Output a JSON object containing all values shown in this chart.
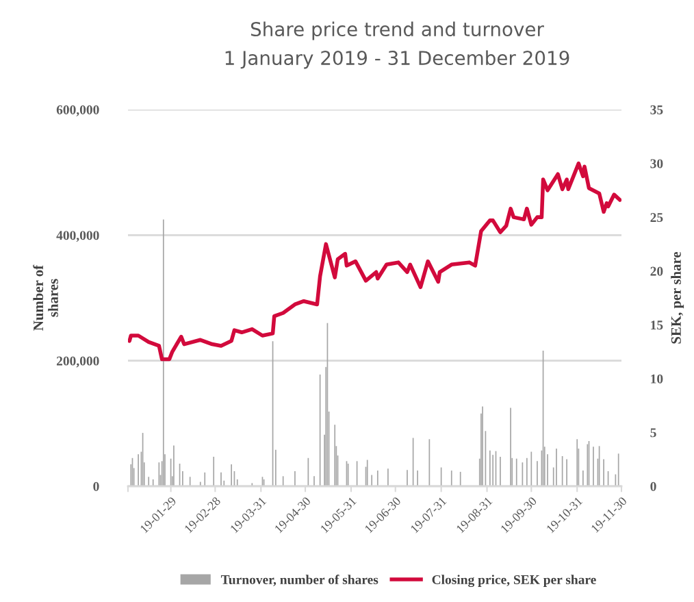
{
  "chart_data": {
    "type": "bar",
    "title": "Share price trend and turnover",
    "subtitle": "1 January 2019 - 31 December 2019",
    "ylabel": "Number of\nshares",
    "y2label": "SEK, per share",
    "xlim": [
      "2018-12-31",
      "2019-11-30"
    ],
    "xticks": [
      {
        "value": "2018-12-31",
        "label": null
      },
      {
        "value": "2019-01-29",
        "label": "19-01-29"
      },
      {
        "value": "2019-02-28",
        "label": "19-02-28"
      },
      {
        "value": "2019-03-31",
        "label": "19-03-31"
      },
      {
        "value": "2019-04-30",
        "label": "19-04-30"
      },
      {
        "value": "2019-05-31",
        "label": "19-05-31"
      },
      {
        "value": "2019-06-30",
        "label": "19-06-30"
      },
      {
        "value": "2019-07-31",
        "label": "19-07-31"
      },
      {
        "value": "2019-08-31",
        "label": "19-08-31"
      },
      {
        "value": "2019-09-30",
        "label": "19-09-30"
      },
      {
        "value": "2019-10-31",
        "label": "19-10-31"
      },
      {
        "value": "2019-11-30",
        "label": "19-11-30"
      }
    ],
    "ylim": [
      0,
      600000
    ],
    "yticks": [
      {
        "value": 0,
        "label": "0"
      },
      {
        "value": 200000,
        "label": "200,000"
      },
      {
        "value": 400000,
        "label": "400,000"
      },
      {
        "value": 600000,
        "label": "600,000"
      }
    ],
    "y2lim": [
      0,
      35
    ],
    "y2ticks": [
      0,
      5,
      10,
      15,
      20,
      25,
      30,
      35
    ],
    "grid": "y",
    "legend": "bottom",
    "series": [
      {
        "name": "Turnover, number of shares",
        "color": "#a6a6a6",
        "x": [
          "2019-01-02",
          "2019-01-03",
          "2019-01-04",
          "2019-01-07",
          "2019-01-09",
          "2019-01-10",
          "2019-01-11",
          "2019-01-14",
          "2019-01-17",
          "2019-01-21",
          "2019-01-22",
          "2019-01-23",
          "2019-01-24",
          "2019-01-25",
          "2019-01-29",
          "2019-01-30",
          "2019-01-31",
          "2019-02-04",
          "2019-02-06",
          "2019-02-11",
          "2019-02-18",
          "2019-02-21",
          "2019-02-27",
          "2019-03-04",
          "2019-03-06",
          "2019-03-11",
          "2019-03-13",
          "2019-03-15",
          "2019-03-25",
          "2019-04-01",
          "2019-04-02",
          "2019-04-08",
          "2019-04-10",
          "2019-04-15",
          "2019-04-23",
          "2019-05-02",
          "2019-05-06",
          "2019-05-10",
          "2019-05-13",
          "2019-05-14",
          "2019-05-15",
          "2019-05-16",
          "2019-05-20",
          "2019-05-21",
          "2019-05-22",
          "2019-05-28",
          "2019-05-29",
          "2019-06-04",
          "2019-06-10",
          "2019-06-11",
          "2019-06-14",
          "2019-06-18",
          "2019-06-25",
          "2019-07-08",
          "2019-07-12",
          "2019-07-15",
          "2019-07-23",
          "2019-07-31",
          "2019-08-07",
          "2019-08-13",
          "2019-08-26",
          "2019-08-27",
          "2019-08-28",
          "2019-08-30",
          "2019-09-02",
          "2019-09-04",
          "2019-09-06",
          "2019-09-09",
          "2019-09-16",
          "2019-09-17",
          "2019-09-20",
          "2019-09-24",
          "2019-09-27",
          "2019-09-30",
          "2019-10-04",
          "2019-10-07",
          "2019-10-08",
          "2019-10-09",
          "2019-10-11",
          "2019-10-15",
          "2019-10-17",
          "2019-10-21",
          "2019-10-24",
          "2019-10-31",
          "2019-11-01",
          "2019-11-04",
          "2019-11-07",
          "2019-11-08",
          "2019-11-11",
          "2019-11-14",
          "2019-11-15",
          "2019-11-18",
          "2019-11-21",
          "2019-11-26",
          "2019-11-28"
        ],
        "values": [
          35000,
          45000,
          29000,
          51000,
          55000,
          85000,
          38000,
          15000,
          11000,
          38000,
          18000,
          40000,
          425000,
          51000,
          44000,
          16000,
          65000,
          36000,
          24000,
          15000,
          7000,
          22000,
          47000,
          22000,
          9000,
          35000,
          24000,
          11000,
          5000,
          15000,
          11000,
          231000,
          58000,
          16000,
          24000,
          45000,
          16000,
          178000,
          82000,
          190000,
          260000,
          119000,
          98000,
          64000,
          49000,
          40000,
          36000,
          40000,
          31000,
          42000,
          18000,
          25000,
          28000,
          26000,
          77000,
          25000,
          75000,
          30000,
          25000,
          23000,
          44000,
          116000,
          127000,
          88000,
          57000,
          50000,
          56000,
          47000,
          125000,
          45000,
          44000,
          38000,
          45000,
          55000,
          40000,
          57000,
          216000,
          63000,
          51000,
          30000,
          60000,
          48000,
          43000,
          75000,
          60000,
          25000,
          67000,
          72000,
          63000,
          44000,
          64000,
          43000,
          24000,
          19000,
          52000
        ]
      },
      {
        "name": "Closing price, SEK per share",
        "type": "line",
        "axis": "y2",
        "color": "#d20a3c",
        "x": [
          "2019-01-01",
          "2019-01-02",
          "2019-01-07",
          "2019-01-14",
          "2019-01-21",
          "2019-01-23",
          "2019-01-28",
          "2019-01-30",
          "2019-02-05",
          "2019-02-07",
          "2019-02-18",
          "2019-02-26",
          "2019-03-04",
          "2019-03-11",
          "2019-03-13",
          "2019-03-18",
          "2019-03-25",
          "2019-04-01",
          "2019-04-08",
          "2019-04-09",
          "2019-04-15",
          "2019-04-23",
          "2019-04-29",
          "2019-05-08",
          "2019-05-10",
          "2019-05-14",
          "2019-05-20",
          "2019-05-22",
          "2019-05-27",
          "2019-05-28",
          "2019-06-03",
          "2019-06-10",
          "2019-06-17",
          "2019-06-18",
          "2019-06-24",
          "2019-07-02",
          "2019-07-08",
          "2019-07-10",
          "2019-07-17",
          "2019-07-22",
          "2019-07-29",
          "2019-07-30",
          "2019-08-07",
          "2019-08-19",
          "2019-08-23",
          "2019-08-27",
          "2019-09-02",
          "2019-09-04",
          "2019-09-09",
          "2019-09-13",
          "2019-09-16",
          "2019-09-18",
          "2019-09-25",
          "2019-09-27",
          "2019-09-30",
          "2019-10-04",
          "2019-10-07",
          "2019-10-08",
          "2019-10-11",
          "2019-10-18",
          "2019-10-21",
          "2019-10-24",
          "2019-10-25",
          "2019-11-01",
          "2019-11-04",
          "2019-11-05",
          "2019-11-08",
          "2019-11-15",
          "2019-11-18",
          "2019-11-20",
          "2019-11-21",
          "2019-11-25",
          "2019-11-29"
        ],
        "values": [
          13.5,
          14.0,
          14.0,
          13.4,
          13.05,
          11.8,
          11.8,
          12.5,
          13.9,
          13.2,
          13.6,
          13.2,
          13.05,
          13.5,
          14.5,
          14.3,
          14.6,
          14.0,
          14.2,
          15.8,
          16.1,
          16.9,
          17.2,
          16.9,
          19.5,
          22.5,
          19.4,
          21.1,
          21.6,
          20.5,
          20.9,
          19.1,
          19.9,
          19.3,
          20.6,
          20.8,
          19.9,
          20.6,
          18.5,
          20.9,
          19.0,
          19.9,
          20.6,
          20.8,
          20.5,
          23.7,
          24.7,
          24.7,
          23.6,
          24.2,
          25.8,
          25.0,
          24.8,
          25.8,
          24.3,
          25.0,
          25.0,
          28.5,
          27.5,
          29.0,
          27.6,
          28.5,
          27.6,
          30.0,
          28.8,
          29.7,
          27.7,
          27.2,
          25.5,
          26.3,
          26.0,
          27.1,
          26.6
        ]
      }
    ]
  }
}
